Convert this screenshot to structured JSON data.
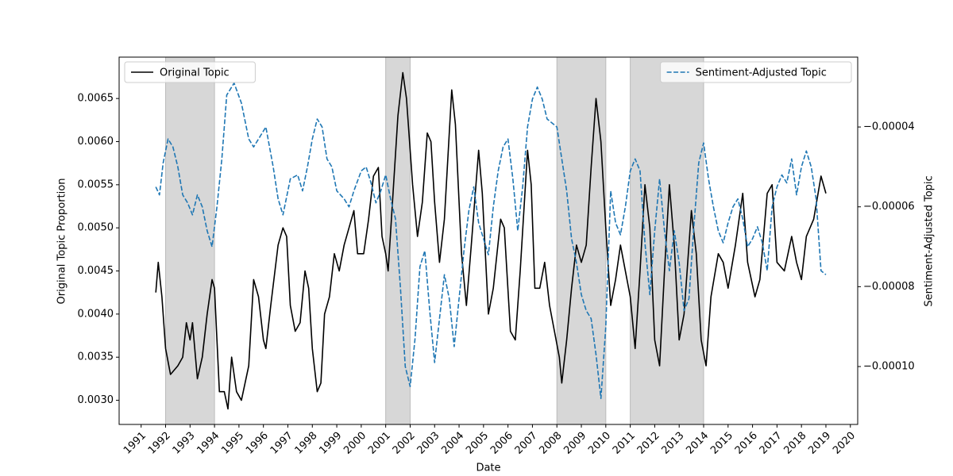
{
  "chart_data": {
    "type": "line",
    "xlabel": "Date",
    "ylabel": "Original Topic Proportion",
    "y2label": "Sentiment-Adjusted Topic",
    "xlim": [
      1990.1,
      2020.3
    ],
    "xticks": [
      1991,
      1992,
      1993,
      1994,
      1995,
      1996,
      1997,
      1998,
      1999,
      2000,
      2001,
      2002,
      2003,
      2004,
      2005,
      2006,
      2007,
      2008,
      2009,
      2010,
      2011,
      2012,
      2013,
      2014,
      2015,
      2016,
      2017,
      2018,
      2019,
      2020
    ],
    "ylim": [
      0.00272,
      0.00698
    ],
    "yticks": [
      {
        "value": 0.003,
        "label": "0.0030"
      },
      0.0035,
      {
        "value": 0.004,
        "label": "0.0040"
      },
      0.0045,
      {
        "value": 0.005,
        "label": "0.0050"
      },
      0.0055,
      {
        "value": 0.006,
        "label": "0.0060"
      },
      0.0065
    ],
    "y2lim": [
      -0.0001145,
      -2.25e-05
    ],
    "y2ticks": [
      {
        "value": -4e-05,
        "label": "−0.00004"
      },
      {
        "value": -6e-05,
        "label": "−0.00006"
      },
      {
        "value": -8e-05,
        "label": "−0.00008"
      },
      {
        "value": -0.0001,
        "label": "−0.00010"
      }
    ],
    "shaded_spans": [
      [
        1992,
        1994
      ],
      [
        2001,
        2002
      ],
      [
        2008,
        2010
      ],
      [
        2011,
        2014
      ]
    ],
    "shaded_color": "#d3d3d3",
    "series": [
      {
        "name": "Original Topic",
        "color": "#000000",
        "dashed": false,
        "legend_loc": "upper left",
        "x": [
          1991.6,
          1991.7,
          1991.85,
          1992.0,
          1992.2,
          1992.5,
          1992.7,
          1992.85,
          1993.0,
          1993.1,
          1993.3,
          1993.5,
          1993.7,
          1993.9,
          1994.0,
          1994.2,
          1994.4,
          1994.55,
          1994.7,
          1994.9,
          1995.1,
          1995.4,
          1995.6,
          1995.8,
          1996.0,
          1996.1,
          1996.3,
          1996.6,
          1996.8,
          1996.95,
          1997.1,
          1997.3,
          1997.5,
          1997.7,
          1997.85,
          1998.0,
          1998.2,
          1998.35,
          1998.5,
          1998.7,
          1998.9,
          1999.1,
          1999.3,
          1999.5,
          1999.7,
          1999.85,
          2000.1,
          2000.3,
          2000.5,
          2000.7,
          2000.85,
          2001.0,
          2001.1,
          2001.3,
          2001.5,
          2001.7,
          2001.85,
          2002.1,
          2002.3,
          2002.5,
          2002.7,
          2002.85,
          2003.0,
          2003.2,
          2003.4,
          2003.7,
          2003.85,
          2004.1,
          2004.3,
          2004.5,
          2004.8,
          2004.95,
          2005.2,
          2005.4,
          2005.7,
          2005.85,
          2006.1,
          2006.3,
          2006.5,
          2006.8,
          2006.95,
          2007.1,
          2007.3,
          2007.5,
          2007.7,
          2007.9,
          2008.1,
          2008.2,
          2008.4,
          2008.6,
          2008.8,
          2009.0,
          2009.2,
          2009.4,
          2009.6,
          2009.8,
          2010.0,
          2010.2,
          2010.4,
          2010.6,
          2010.8,
          2011.0,
          2011.2,
          2011.4,
          2011.6,
          2011.8,
          2012.0,
          2012.2,
          2012.4,
          2012.6,
          2012.8,
          2013.0,
          2013.2,
          2013.5,
          2013.7,
          2013.9,
          2014.1,
          2014.3,
          2014.6,
          2014.8,
          2015.0,
          2015.3,
          2015.6,
          2015.8,
          2016.1,
          2016.3,
          2016.6,
          2016.8,
          2017.0,
          2017.3,
          2017.6,
          2017.8,
          2018.0,
          2018.2,
          2018.5,
          2018.8,
          2019.0
        ],
        "values": [
          0.00425,
          0.0046,
          0.0042,
          0.0036,
          0.0033,
          0.0034,
          0.0035,
          0.0039,
          0.0037,
          0.0039,
          0.00325,
          0.0035,
          0.004,
          0.0044,
          0.0043,
          0.0031,
          0.0031,
          0.0029,
          0.0035,
          0.0031,
          0.003,
          0.0034,
          0.0044,
          0.0042,
          0.0037,
          0.0036,
          0.0041,
          0.0048,
          0.005,
          0.0049,
          0.0041,
          0.0038,
          0.0039,
          0.0045,
          0.0043,
          0.0036,
          0.0031,
          0.0032,
          0.004,
          0.0042,
          0.0047,
          0.0045,
          0.0048,
          0.005,
          0.0052,
          0.0047,
          0.0047,
          0.0051,
          0.0056,
          0.0057,
          0.0049,
          0.0047,
          0.0045,
          0.0054,
          0.0063,
          0.0068,
          0.0065,
          0.0055,
          0.0049,
          0.0053,
          0.0061,
          0.006,
          0.0053,
          0.0046,
          0.0051,
          0.0066,
          0.0062,
          0.0047,
          0.0041,
          0.0048,
          0.0059,
          0.0054,
          0.004,
          0.0043,
          0.0051,
          0.005,
          0.0038,
          0.0037,
          0.0045,
          0.0059,
          0.0055,
          0.0043,
          0.0043,
          0.0046,
          0.0041,
          0.0038,
          0.0035,
          0.0032,
          0.0037,
          0.0043,
          0.0048,
          0.0046,
          0.0048,
          0.0057,
          0.0065,
          0.006,
          0.005,
          0.0041,
          0.0044,
          0.0048,
          0.0045,
          0.0042,
          0.0036,
          0.0045,
          0.0055,
          0.005,
          0.0037,
          0.0034,
          0.0045,
          0.0055,
          0.0048,
          0.0037,
          0.004,
          0.0052,
          0.0047,
          0.0037,
          0.0034,
          0.0042,
          0.0047,
          0.0046,
          0.0043,
          0.0048,
          0.0054,
          0.0046,
          0.0042,
          0.0044,
          0.0054,
          0.0055,
          0.0046,
          0.0045,
          0.0049,
          0.0046,
          0.0044,
          0.0049,
          0.0051,
          0.0056,
          0.0054
        ]
      },
      {
        "name": "Sentiment-Adjusted Topic",
        "color": "#1f77b4",
        "dashed": true,
        "axis": "y2",
        "legend_loc": "upper right",
        "x": [
          1991.6,
          1991.75,
          1991.9,
          1992.1,
          1992.3,
          1992.5,
          1992.7,
          1992.9,
          1993.1,
          1993.3,
          1993.5,
          1993.7,
          1993.9,
          1994.1,
          1994.3,
          1994.5,
          1994.8,
          1995.1,
          1995.4,
          1995.6,
          1995.9,
          1996.1,
          1996.4,
          1996.6,
          1996.8,
          1997.1,
          1997.4,
          1997.6,
          1997.8,
          1998.0,
          1998.2,
          1998.4,
          1998.6,
          1998.8,
          1999.0,
          1999.3,
          1999.5,
          1999.7,
          2000.0,
          2000.2,
          2000.4,
          2000.6,
          2000.8,
          2001.0,
          2001.2,
          2001.4,
          2001.6,
          2001.8,
          2002.0,
          2002.2,
          2002.4,
          2002.6,
          2002.8,
          2003.0,
          2003.2,
          2003.4,
          2003.6,
          2003.8,
          2004.0,
          2004.2,
          2004.4,
          2004.6,
          2004.8,
          2005.0,
          2005.2,
          2005.4,
          2005.6,
          2005.8,
          2006.0,
          2006.2,
          2006.4,
          2006.6,
          2006.8,
          2007.0,
          2007.2,
          2007.4,
          2007.6,
          2007.8,
          2008.0,
          2008.2,
          2008.4,
          2008.6,
          2008.8,
          2009.0,
          2009.2,
          2009.4,
          2009.6,
          2009.8,
          2010.0,
          2010.2,
          2010.4,
          2010.6,
          2010.8,
          2011.0,
          2011.2,
          2011.4,
          2011.6,
          2011.8,
          2012.0,
          2012.2,
          2012.4,
          2012.6,
          2012.8,
          2013.0,
          2013.2,
          2013.4,
          2013.6,
          2013.8,
          2014.0,
          2014.2,
          2014.4,
          2014.6,
          2014.8,
          2015.0,
          2015.2,
          2015.4,
          2015.6,
          2015.8,
          2016.0,
          2016.2,
          2016.4,
          2016.6,
          2016.8,
          2017.0,
          2017.2,
          2017.4,
          2017.6,
          2017.8,
          2018.0,
          2018.2,
          2018.4,
          2018.6,
          2018.8,
          2019.0
        ],
        "values": [
          -5.5e-05,
          -5.7e-05,
          -4.9e-05,
          -4.3e-05,
          -4.5e-05,
          -5e-05,
          -5.7e-05,
          -5.9e-05,
          -6.2e-05,
          -5.7e-05,
          -6e-05,
          -6.6e-05,
          -7e-05,
          -6e-05,
          -4.8e-05,
          -3.2e-05,
          -2.9e-05,
          -3.4e-05,
          -4.3e-05,
          -4.5e-05,
          -4.2e-05,
          -4e-05,
          -5e-05,
          -5.8e-05,
          -6.2e-05,
          -5.3e-05,
          -5.2e-05,
          -5.6e-05,
          -5e-05,
          -4.3e-05,
          -3.8e-05,
          -4e-05,
          -4.8e-05,
          -5e-05,
          -5.6e-05,
          -5.8e-05,
          -6e-05,
          -5.6e-05,
          -5.1e-05,
          -5e-05,
          -5.4e-05,
          -5.9e-05,
          -5.6e-05,
          -5.2e-05,
          -5.8e-05,
          -6.3e-05,
          -8e-05,
          -0.0001,
          -0.000105,
          -9.3e-05,
          -7.5e-05,
          -7.1e-05,
          -8.6e-05,
          -9.9e-05,
          -8.8e-05,
          -7.7e-05,
          -8.3e-05,
          -9.5e-05,
          -8.3e-05,
          -7.1e-05,
          -6.1e-05,
          -5.5e-05,
          -6.4e-05,
          -6.8e-05,
          -7.2e-05,
          -6e-05,
          -5.1e-05,
          -4.5e-05,
          -4.3e-05,
          -5.3e-05,
          -6.6e-05,
          -5.5e-05,
          -4e-05,
          -3.3e-05,
          -3e-05,
          -3.3e-05,
          -3.8e-05,
          -3.9e-05,
          -4e-05,
          -4.8e-05,
          -5.6e-05,
          -6.8e-05,
          -7.4e-05,
          -8.2e-05,
          -8.6e-05,
          -8.8e-05,
          -9.7e-05,
          -0.000108,
          -9e-05,
          -5.6e-05,
          -6.4e-05,
          -6.7e-05,
          -6e-05,
          -5.1e-05,
          -4.8e-05,
          -5.1e-05,
          -6.9e-05,
          -8.2e-05,
          -6.6e-05,
          -5.3e-05,
          -6.6e-05,
          -7.6e-05,
          -6.6e-05,
          -7.4e-05,
          -8.6e-05,
          -8.3e-05,
          -6.5e-05,
          -4.9e-05,
          -4.4e-05,
          -5.3e-05,
          -6e-05,
          -6.6e-05,
          -6.9e-05,
          -6.4e-05,
          -6e-05,
          -5.8e-05,
          -6.3e-05,
          -7e-05,
          -6.8e-05,
          -6.5e-05,
          -6.9e-05,
          -7.6e-05,
          -6e-05,
          -5.5e-05,
          -5.2e-05,
          -5.4e-05,
          -4.8e-05,
          -5.7e-05,
          -5e-05,
          -4.6e-05,
          -5e-05,
          -5.8e-05,
          -7.6e-05,
          -7.7e-05
        ]
      }
    ]
  }
}
